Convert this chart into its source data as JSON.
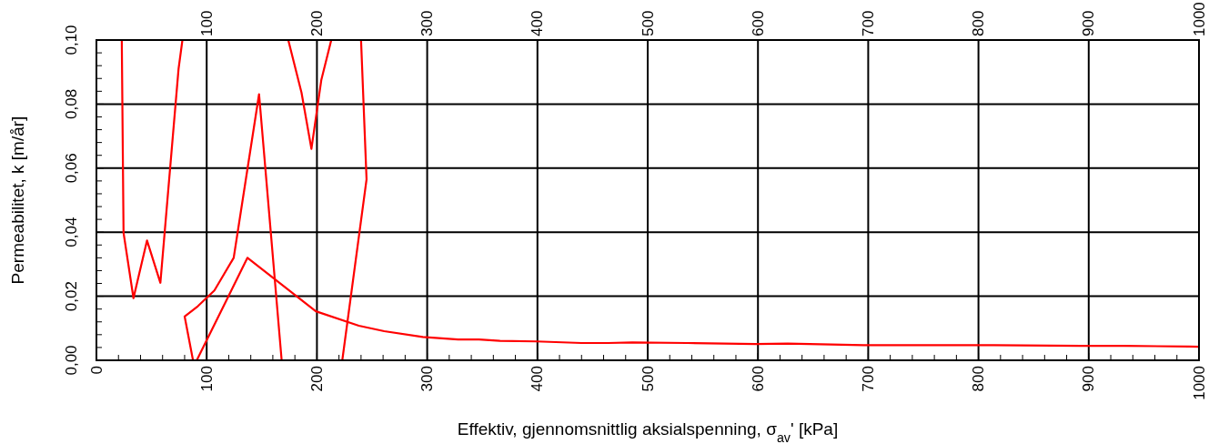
{
  "chart_data": {
    "type": "line",
    "xlabel": "Effektiv, gjennomsnittlig aksialspenning, σ$_{av}$'  [kPa]",
    "ylabel": "Permeabilitet, k [m/år]",
    "xlim": [
      0,
      1000
    ],
    "ylim": [
      0,
      0.1
    ],
    "xticks": [
      0,
      {
        "value": 20,
        "label": null
      },
      {
        "value": 40,
        "label": null
      },
      {
        "value": 60,
        "label": null
      },
      {
        "value": 80,
        "label": null
      },
      100,
      {
        "value": 120,
        "label": null
      },
      {
        "value": 140,
        "label": null
      },
      {
        "value": 160,
        "label": null
      },
      {
        "value": 180,
        "label": null
      },
      200,
      {
        "value": 220,
        "label": null
      },
      {
        "value": 240,
        "label": null
      },
      {
        "value": 260,
        "label": null
      },
      {
        "value": 280,
        "label": null
      },
      300,
      {
        "value": 320,
        "label": null
      },
      {
        "value": 340,
        "label": null
      },
      {
        "value": 360,
        "label": null
      },
      {
        "value": 380,
        "label": null
      },
      400,
      {
        "value": 420,
        "label": null
      },
      {
        "value": 440,
        "label": null
      },
      {
        "value": 460,
        "label": null
      },
      {
        "value": 480,
        "label": null
      },
      500,
      {
        "value": 520,
        "label": null
      },
      {
        "value": 540,
        "label": null
      },
      {
        "value": 560,
        "label": null
      },
      {
        "value": 580,
        "label": null
      },
      600,
      {
        "value": 620,
        "label": null
      },
      {
        "value": 640,
        "label": null
      },
      {
        "value": 660,
        "label": null
      },
      {
        "value": 680,
        "label": null
      },
      700,
      {
        "value": 720,
        "label": null
      },
      {
        "value": 740,
        "label": null
      },
      {
        "value": 760,
        "label": null
      },
      {
        "value": 780,
        "label": null
      },
      800,
      {
        "value": 820,
        "label": null
      },
      {
        "value": 840,
        "label": null
      },
      {
        "value": 860,
        "label": null
      },
      {
        "value": 880,
        "label": null
      },
      900,
      {
        "value": 920,
        "label": null
      },
      {
        "value": 940,
        "label": null
      },
      {
        "value": 960,
        "label": null
      },
      {
        "value": 980,
        "label": null
      },
      1000
    ],
    "x2lim": [
      0,
      1000
    ],
    "x2ticks": [
      100,
      200,
      300,
      400,
      500,
      600,
      700,
      800,
      900,
      1000
    ],
    "yticks": [
      {
        "value": 0,
        "label": "0,00"
      },
      {
        "value": 0.004,
        "label": null
      },
      {
        "value": 0.008,
        "label": null
      },
      {
        "value": 0.012,
        "label": null
      },
      {
        "value": 0.016,
        "label": null
      },
      {
        "value": 0.02,
        "label": "0,02"
      },
      {
        "value": 0.024,
        "label": null
      },
      {
        "value": 0.028,
        "label": null
      },
      {
        "value": 0.032,
        "label": null
      },
      {
        "value": 0.036,
        "label": null
      },
      {
        "value": 0.04,
        "label": "0,04"
      },
      {
        "value": 0.044,
        "label": null
      },
      {
        "value": 0.048,
        "label": null
      },
      {
        "value": 0.052,
        "label": null
      },
      {
        "value": 0.056,
        "label": null
      },
      {
        "value": 0.06,
        "label": "0,06"
      },
      {
        "value": 0.064,
        "label": null
      },
      {
        "value": 0.068,
        "label": null
      },
      {
        "value": 0.072,
        "label": null
      },
      {
        "value": 0.076,
        "label": null
      },
      {
        "value": 0.08,
        "label": "0,08"
      },
      {
        "value": 0.084,
        "label": null
      },
      {
        "value": 0.088,
        "label": null
      },
      {
        "value": 0.092,
        "label": null
      },
      {
        "value": 0.096,
        "label": null
      },
      {
        "value": 0.1,
        "label": "0,10"
      }
    ],
    "grid": true,
    "marker": "none",
    "line_style": "solid",
    "series": [
      {
        "color": "#ff0000",
        "x": [
          23,
          24.6,
          33.6,
          45.9,
          58,
          74.5,
          78
        ],
        "values": [
          0.1,
          0.0398,
          0.0194,
          0.0374,
          0.0242,
          0.091,
          0.1
        ]
      },
      {
        "color": "#ff0000",
        "x": [
          174,
          186,
          195,
          204,
          213
        ],
        "values": [
          0.1,
          0.0836,
          0.066,
          0.0876,
          0.1
        ]
      },
      {
        "color": "#ff0000",
        "x": [
          240,
          245,
          223
        ],
        "values": [
          0.1,
          0.0565,
          0
        ]
      },
      {
        "color": "#ff0000",
        "x": [
          168,
          147.5,
          124.5,
          107,
          92,
          80,
          87.6
        ],
        "values": [
          0,
          0.0831,
          0.032,
          0.0218,
          0.0169,
          0.0137,
          0
        ]
      },
      {
        "color": "#ff0000",
        "x": [
          91,
          137,
          199,
          238,
          261,
          296,
          328,
          347,
          366,
          399,
          440,
          464,
          486,
          536,
          598,
          627,
          696,
          814,
          893,
          932,
          991,
          1000
        ],
        "values": [
          0,
          0.032,
          0.0153,
          0.0108,
          0.0091,
          0.0073,
          0.0065,
          0.0065,
          0.0061,
          0.0059,
          0.0054,
          0.0054,
          0.0056,
          0.0054,
          0.0051,
          0.0052,
          0.0047,
          0.0047,
          0.0045,
          0.0045,
          0.0043,
          0.0042
        ]
      }
    ]
  }
}
